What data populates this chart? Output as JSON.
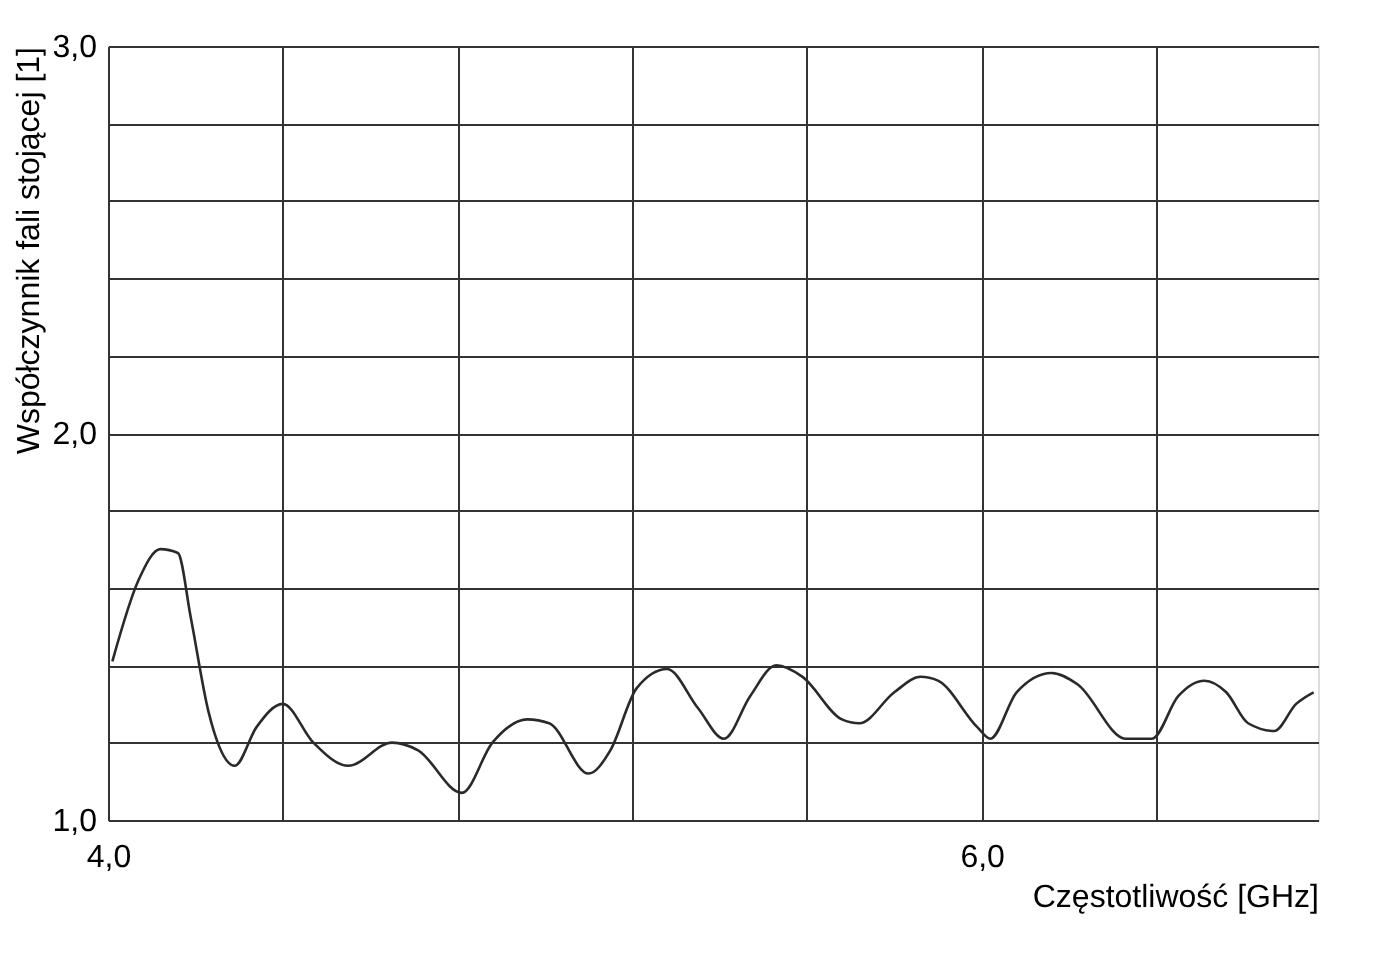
{
  "chart_data": {
    "type": "line",
    "xlabel": "Częstotliwość [GHz]",
    "ylabel": "Współczynnik fali stojącej  [1]",
    "x": [
      4.01,
      4.07,
      4.12,
      4.16,
      4.19,
      4.23,
      4.29,
      4.34,
      4.4,
      4.47,
      4.55,
      4.65,
      4.71,
      4.81,
      4.88,
      4.96,
      5.01,
      5.1,
      5.15,
      5.21,
      5.28,
      5.35,
      5.41,
      5.47,
      5.53,
      5.59,
      5.68,
      5.72,
      5.8,
      5.86,
      5.9,
      5.99,
      6.02,
      6.08,
      6.16,
      6.22,
      6.33,
      6.39,
      6.45,
      6.51,
      6.56,
      6.61,
      6.67,
      6.72,
      6.76
    ],
    "series": [
      {
        "color": "#2a2a2a",
        "values": [
          1.41,
          1.62,
          1.7,
          1.69,
          1.52,
          1.28,
          1.14,
          1.24,
          1.3,
          1.2,
          1.14,
          1.2,
          1.18,
          1.07,
          1.2,
          1.26,
          1.25,
          1.12,
          1.18,
          1.34,
          1.39,
          1.29,
          1.21,
          1.32,
          1.4,
          1.37,
          1.26,
          1.25,
          1.33,
          1.37,
          1.36,
          1.24,
          1.21,
          1.33,
          1.38,
          1.35,
          1.21,
          1.21,
          1.32,
          1.36,
          1.33,
          1.25,
          1.23,
          1.3,
          1.33
        ]
      }
    ],
    "xlim": [
      4.0,
      6.77
    ],
    "xticks": [
      {
        "value": 4.0,
        "label": "4,0"
      },
      {
        "value": 4.4,
        "label": null
      },
      {
        "value": 4.8,
        "label": null
      },
      {
        "value": 5.2,
        "label": null
      },
      {
        "value": 5.6,
        "label": null
      },
      {
        "value": 6.0,
        "label": "6,0"
      },
      {
        "value": 6.4,
        "label": null
      }
    ],
    "ylim": [
      1.0,
      3.0
    ],
    "yticks": [
      {
        "value": 1.0,
        "label": "1,0"
      },
      {
        "value": 1.2,
        "label": null
      },
      {
        "value": 1.4,
        "label": null
      },
      {
        "value": 1.6,
        "label": null
      },
      {
        "value": 1.8,
        "label": null
      },
      {
        "value": 2.0,
        "label": "2,0"
      },
      {
        "value": 2.2,
        "label": null
      },
      {
        "value": 2.4,
        "label": null
      },
      {
        "value": 2.6,
        "label": null
      },
      {
        "value": 2.8,
        "label": null
      },
      {
        "value": 3.0,
        "label": "3,0"
      }
    ],
    "grid": true,
    "marker": "none",
    "line_style": "solid"
  }
}
